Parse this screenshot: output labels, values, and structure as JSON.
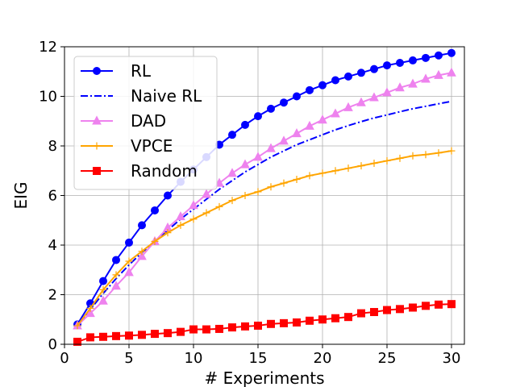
{
  "chart_data": {
    "type": "line",
    "title": "",
    "xlabel": "# Experiments",
    "ylabel": "EIG",
    "xlim": [
      0,
      31
    ],
    "ylim": [
      0,
      12
    ],
    "xticks": [
      0,
      5,
      10,
      15,
      20,
      25,
      30
    ],
    "yticks": [
      0,
      2,
      4,
      6,
      8,
      10,
      12
    ],
    "grid": true,
    "legend_position": "upper-left",
    "x": [
      1,
      2,
      3,
      4,
      5,
      6,
      7,
      8,
      9,
      10,
      11,
      12,
      13,
      14,
      15,
      16,
      17,
      18,
      19,
      20,
      21,
      22,
      23,
      24,
      25,
      26,
      27,
      28,
      29,
      30
    ],
    "series": [
      {
        "name": "RL",
        "color": "#0000ff",
        "linestyle": "solid",
        "marker": "circle",
        "values": [
          0.8,
          1.65,
          2.55,
          3.4,
          4.1,
          4.8,
          5.4,
          6.0,
          6.55,
          7.05,
          7.55,
          8.05,
          8.45,
          8.85,
          9.2,
          9.5,
          9.75,
          10.0,
          10.25,
          10.45,
          10.65,
          10.8,
          10.95,
          11.1,
          11.25,
          11.35,
          11.45,
          11.55,
          11.65,
          11.75
        ]
      },
      {
        "name": "Naive RL",
        "color": "#0000ff",
        "linestyle": "dashdot",
        "marker": "none",
        "values": [
          0.75,
          1.4,
          2.05,
          2.65,
          3.2,
          3.7,
          4.15,
          4.6,
          5.05,
          5.45,
          5.85,
          6.25,
          6.6,
          6.95,
          7.25,
          7.55,
          7.8,
          8.05,
          8.25,
          8.45,
          8.65,
          8.82,
          8.98,
          9.13,
          9.25,
          9.38,
          9.5,
          9.6,
          9.7,
          9.8
        ]
      },
      {
        "name": "DAD",
        "color": "#ee82ee",
        "linestyle": "solid",
        "marker": "triangle",
        "values": [
          0.75,
          1.25,
          1.75,
          2.35,
          2.9,
          3.55,
          4.15,
          4.7,
          5.15,
          5.6,
          6.05,
          6.5,
          6.9,
          7.25,
          7.55,
          7.9,
          8.2,
          8.5,
          8.8,
          9.05,
          9.3,
          9.55,
          9.75,
          9.95,
          10.15,
          10.35,
          10.5,
          10.7,
          10.85,
          10.95
        ]
      },
      {
        "name": "VPCE",
        "color": "#ffa500",
        "linestyle": "solid",
        "marker": "plus",
        "values": [
          0.75,
          1.45,
          2.2,
          2.8,
          3.35,
          3.75,
          4.15,
          4.5,
          4.8,
          5.05,
          5.3,
          5.55,
          5.8,
          6.0,
          6.15,
          6.35,
          6.5,
          6.65,
          6.8,
          6.9,
          7.0,
          7.1,
          7.2,
          7.3,
          7.4,
          7.5,
          7.6,
          7.65,
          7.72,
          7.8
        ]
      },
      {
        "name": "Random",
        "color": "#ff0000",
        "linestyle": "solid",
        "marker": "square",
        "values": [
          0.1,
          0.28,
          0.3,
          0.33,
          0.35,
          0.38,
          0.42,
          0.45,
          0.5,
          0.6,
          0.6,
          0.62,
          0.68,
          0.72,
          0.75,
          0.82,
          0.85,
          0.88,
          0.95,
          1.0,
          1.05,
          1.1,
          1.25,
          1.3,
          1.38,
          1.42,
          1.48,
          1.55,
          1.6,
          1.62
        ]
      }
    ]
  }
}
